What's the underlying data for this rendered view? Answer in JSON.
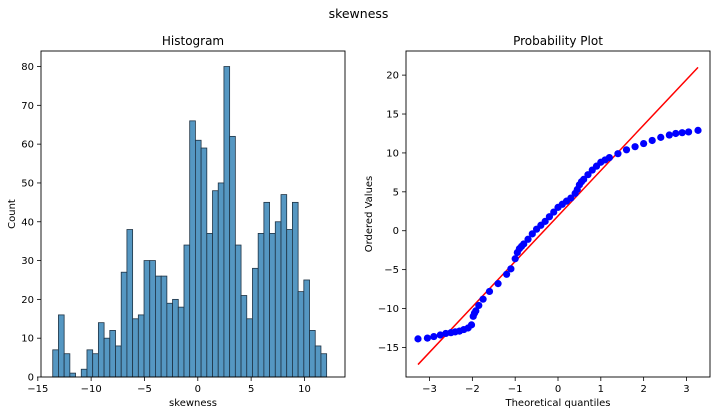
{
  "figure": {
    "title": "skewness"
  },
  "chart_data": [
    {
      "type": "bar",
      "title": "Histogram",
      "xlabel": "skewness",
      "ylabel": "Count",
      "xlim": [
        -14.7,
        13.8
      ],
      "ylim": [
        0,
        84
      ],
      "xticks": [
        -15,
        -10,
        -5,
        0,
        5,
        10
      ],
      "yticks": [
        0,
        10,
        20,
        30,
        40,
        50,
        60,
        70,
        80
      ],
      "grid": false,
      "bin_start": -13.6,
      "bin_width": 0.535,
      "values": [
        7,
        16,
        6,
        1,
        0,
        2,
        7,
        6,
        14,
        10,
        12,
        8,
        27,
        38,
        15,
        16,
        30,
        30,
        26,
        26,
        19,
        20,
        18,
        34,
        66,
        61,
        59,
        37,
        48,
        50,
        80,
        62,
        34,
        21,
        15,
        28,
        37,
        45,
        37,
        40,
        47,
        38,
        45,
        22,
        25,
        12,
        8,
        6
      ]
    },
    {
      "type": "scatter",
      "title": "Probability Plot",
      "xlabel": "Theoretical quantiles",
      "ylabel": "Ordered Values",
      "xlim": [
        -3.55,
        3.55
      ],
      "ylim": [
        -18.8,
        23.1
      ],
      "xticks": [
        -3,
        -2,
        -1,
        0,
        1,
        2,
        3
      ],
      "yticks": [
        -15,
        -10,
        -5,
        0,
        5,
        10,
        15,
        20
      ],
      "grid": false,
      "points": {
        "x": [
          -3.27,
          -3.05,
          -2.9,
          -2.75,
          -2.62,
          -2.5,
          -2.4,
          -2.3,
          -2.2,
          -2.1,
          -2.02,
          -1.98,
          -1.95,
          -1.92,
          -1.85,
          -1.75,
          -1.6,
          -1.4,
          -1.2,
          -1.1,
          -1.0,
          -0.95,
          -0.9,
          -0.85,
          -0.8,
          -0.7,
          -0.6,
          -0.5,
          -0.4,
          -0.3,
          -0.2,
          -0.1,
          0.0,
          0.1,
          0.2,
          0.3,
          0.4,
          0.45,
          0.5,
          0.55,
          0.6,
          0.7,
          0.8,
          0.9,
          1.0,
          1.1,
          1.2,
          1.4,
          1.6,
          1.8,
          2.0,
          2.2,
          2.4,
          2.6,
          2.75,
          2.9,
          3.05,
          3.27
        ],
        "y": [
          -13.9,
          -13.8,
          -13.6,
          -13.4,
          -13.2,
          -13.1,
          -13.0,
          -12.9,
          -12.7,
          -12.5,
          -12.1,
          -11.0,
          -10.6,
          -10.3,
          -9.6,
          -8.8,
          -7.8,
          -6.8,
          -5.6,
          -4.9,
          -3.6,
          -2.8,
          -2.3,
          -2.0,
          -1.7,
          -1.1,
          -0.4,
          0.2,
          0.7,
          1.2,
          1.8,
          2.4,
          3.0,
          3.4,
          3.8,
          4.2,
          4.8,
          5.3,
          5.9,
          6.3,
          6.6,
          7.2,
          7.8,
          8.3,
          8.8,
          9.1,
          9.4,
          9.9,
          10.4,
          10.8,
          11.2,
          11.6,
          12.0,
          12.3,
          12.5,
          12.6,
          12.7,
          12.9
        ]
      },
      "fit_line": {
        "x": [
          -3.27,
          3.27
        ],
        "y": [
          -17.2,
          21.0
        ]
      },
      "colors": {
        "points": "#0000ff",
        "line": "#ff0000"
      }
    }
  ]
}
